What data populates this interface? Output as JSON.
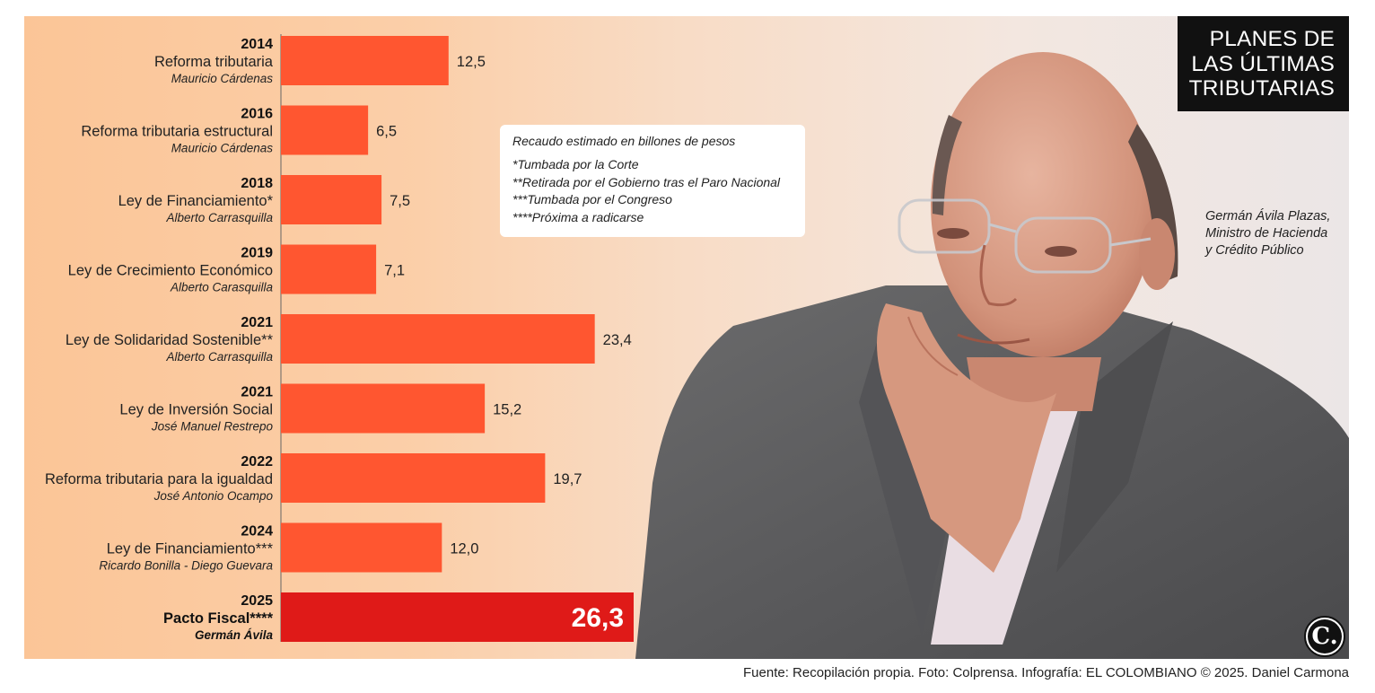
{
  "title": {
    "lines": [
      "PLANES DE",
      "LAS ÚLTIMAS",
      "TRIBUTARIAS"
    ]
  },
  "notes": {
    "title": "Recaudo estimado en billones de pesos",
    "lines": [
      "*Tumbada por la Corte",
      "**Retirada por el Gobierno tras el Paro Nacional",
      "***Tumbada por el Congreso",
      "****Próxima a radicarse"
    ]
  },
  "caption": {
    "lines": [
      "Germán Ávila Plazas,",
      "Ministro de Hacienda",
      "y Crédito Público"
    ]
  },
  "source": "Fuente: Recopilación propia. Foto: Colprensa. Infografía: EL COLOMBIANO © 2025. Daniel Carmona",
  "logo": {
    "letter": "C.",
    "icon": "el-colombiano-logo"
  },
  "photo": {
    "icon": "portrait-photo"
  },
  "colors": {
    "bar": "#ff5630",
    "bar_highlight": "#df1a18",
    "background_left": "#fbc597",
    "title_bg": "#111111"
  },
  "chart_data": {
    "type": "bar",
    "orientation": "horizontal",
    "unit": "billones de pesos",
    "categories": [
      {
        "year": "2014",
        "name": "Reforma tributaria",
        "person": "Mauricio Cárdenas"
      },
      {
        "year": "2016",
        "name": "Reforma tributaria estructural",
        "person": "Mauricio Cárdenas"
      },
      {
        "year": "2018",
        "name": "Ley de Financiamiento*",
        "person": "Alberto Carrasquilla"
      },
      {
        "year": "2019",
        "name": "Ley de Crecimiento Económico",
        "person": "Alberto Carasquilla"
      },
      {
        "year": "2021",
        "name": "Ley de Solidaridad Sostenible**",
        "person": "Alberto Carrasquilla"
      },
      {
        "year": "2021",
        "name": "Ley de Inversión Social",
        "person": "José Manuel Restrepo"
      },
      {
        "year": "2022",
        "name": "Reforma tributaria para la igualdad",
        "person": "José Antonio Ocampo"
      },
      {
        "year": "2024",
        "name": "Ley de Financiamiento***",
        "person": "Ricardo Bonilla - Diego Guevara"
      },
      {
        "year": "2025",
        "name": "Pacto Fiscal****",
        "person": "Germán Ávila"
      }
    ],
    "values": [
      12.5,
      6.5,
      7.5,
      7.1,
      23.4,
      15.2,
      19.7,
      12.0,
      26.3
    ],
    "value_labels": [
      "12,5",
      "6,5",
      "7,5",
      "7,1",
      "23,4",
      "15,2",
      "19,7",
      "12,0",
      "26,3"
    ],
    "highlight_index": 8,
    "xlim": [
      0,
      26.3
    ],
    "grid": false,
    "legend": "none"
  }
}
